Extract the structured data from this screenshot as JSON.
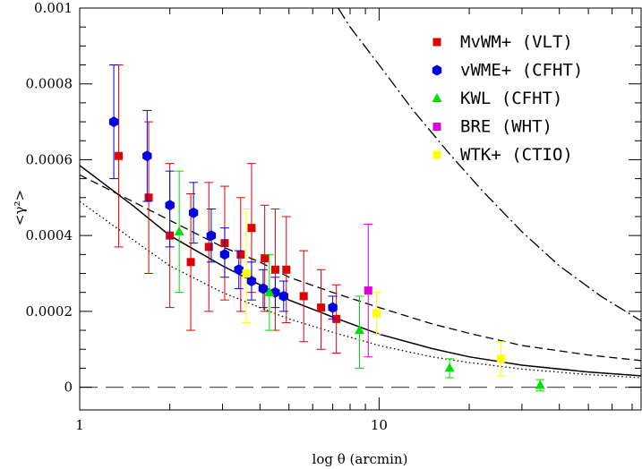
{
  "chart_data": {
    "type": "scatter",
    "xlabel": "log θ (arcmin)",
    "ylabel": "<γ²>",
    "x_scale": "log",
    "xlim": [
      1,
      75
    ],
    "ylim": [
      -6e-05,
      0.001
    ],
    "x_ticks": [
      {
        "value": 1,
        "label": "1"
      },
      {
        "value": 10,
        "label": "10"
      }
    ],
    "y_ticks": [
      {
        "value": 0,
        "label": "0"
      },
      {
        "value": 0.0002,
        "label": "0.0002"
      },
      {
        "value": 0.0004,
        "label": "0.0004"
      },
      {
        "value": 0.0006,
        "label": "0.0006"
      },
      {
        "value": 0.0008,
        "label": "0.0008"
      },
      {
        "value": 0.001,
        "label": "0.001"
      }
    ],
    "legend_position": "top-right",
    "series": [
      {
        "name": "MvWM+ (VLT)",
        "marker": "square",
        "color": "#e00000",
        "points": [
          {
            "x": 1.35,
            "y": 0.00061,
            "lo": 0.00037,
            "hi": 0.00085
          },
          {
            "x": 1.7,
            "y": 0.0005,
            "lo": 0.0003,
            "hi": 0.0007
          },
          {
            "x": 2.0,
            "y": 0.0004,
            "lo": 0.00021,
            "hi": 0.00059
          },
          {
            "x": 2.35,
            "y": 0.00033,
            "lo": 0.00015,
            "hi": 0.00051
          },
          {
            "x": 2.7,
            "y": 0.00037,
            "lo": 0.0002,
            "hi": 0.00054
          },
          {
            "x": 3.05,
            "y": 0.00038,
            "lo": 0.00023,
            "hi": 0.00053
          },
          {
            "x": 3.45,
            "y": 0.00035,
            "lo": 0.0002,
            "hi": 0.0005
          },
          {
            "x": 3.75,
            "y": 0.00042,
            "lo": 0.00025,
            "hi": 0.00059
          },
          {
            "x": 4.15,
            "y": 0.00034,
            "lo": 0.0002,
            "hi": 0.00048
          },
          {
            "x": 4.5,
            "y": 0.00031,
            "lo": 0.00015,
            "hi": 0.00047
          },
          {
            "x": 4.9,
            "y": 0.00031,
            "lo": 0.00017,
            "hi": 0.00045
          },
          {
            "x": 5.6,
            "y": 0.00024,
            "lo": 0.00012,
            "hi": 0.00036
          },
          {
            "x": 6.4,
            "y": 0.00021,
            "lo": 0.0001,
            "hi": 0.00031
          },
          {
            "x": 7.2,
            "y": 0.00018,
            "lo": 9e-05,
            "hi": 0.00027
          }
        ]
      },
      {
        "name": "vWME+ (CFHT)",
        "marker": "hexagon",
        "color": "#0000e0",
        "points": [
          {
            "x": 1.3,
            "y": 0.0007,
            "lo": 0.00055,
            "hi": 0.00085
          },
          {
            "x": 1.68,
            "y": 0.00061,
            "lo": 0.00049,
            "hi": 0.00073
          },
          {
            "x": 2.0,
            "y": 0.00048,
            "lo": 0.00037,
            "hi": 0.00057
          },
          {
            "x": 2.4,
            "y": 0.00046,
            "lo": 0.00038,
            "hi": 0.00054
          },
          {
            "x": 2.75,
            "y": 0.0004,
            "lo": 0.00033,
            "hi": 0.00047
          },
          {
            "x": 3.05,
            "y": 0.00035,
            "lo": 0.00029,
            "hi": 0.00042
          },
          {
            "x": 3.4,
            "y": 0.00031,
            "lo": 0.00026,
            "hi": 0.00036
          },
          {
            "x": 3.75,
            "y": 0.00028,
            "lo": 0.00023,
            "hi": 0.00033
          },
          {
            "x": 4.1,
            "y": 0.00026,
            "lo": 0.00021,
            "hi": 0.00031
          },
          {
            "x": 4.5,
            "y": 0.00025,
            "lo": 0.00021,
            "hi": 0.00029
          },
          {
            "x": 4.8,
            "y": 0.00024,
            "lo": 0.0002,
            "hi": 0.00028
          },
          {
            "x": 7.0,
            "y": 0.00021,
            "lo": 0.00018,
            "hi": 0.00024
          }
        ]
      },
      {
        "name": "KWL (CFHT)",
        "marker": "triangle",
        "color": "#00e000",
        "points": [
          {
            "x": 2.15,
            "y": 0.00041,
            "lo": 0.00025,
            "hi": 0.00057
          },
          {
            "x": 4.3,
            "y": 0.00025,
            "lo": 0.00015,
            "hi": 0.00035
          },
          {
            "x": 8.6,
            "y": 0.00015,
            "lo": 5e-05,
            "hi": 0.00024
          },
          {
            "x": 17.2,
            "y": 5e-05,
            "lo": 2.5e-05,
            "hi": 7.5e-05
          },
          {
            "x": 34.5,
            "y": 5e-06,
            "lo": -1e-05,
            "hi": 2e-05
          }
        ]
      },
      {
        "name": "BRE (WHT)",
        "marker": "square",
        "color": "#e000e0",
        "points": [
          {
            "x": 9.2,
            "y": 0.000255,
            "lo": 8e-05,
            "hi": 0.00043
          }
        ]
      },
      {
        "name": "WTK+ (CTIO)",
        "marker": "square",
        "color": "#ffff00",
        "points": [
          {
            "x": 3.6,
            "y": 0.0003,
            "lo": 0.00017,
            "hi": 0.00047
          },
          {
            "x": 9.8,
            "y": 0.000195,
            "lo": 0.00014,
            "hi": 0.00025
          },
          {
            "x": 25.5,
            "y": 7.5e-05,
            "lo": 3e-05,
            "hi": 0.00012
          }
        ]
      }
    ],
    "model_curves": [
      {
        "style": "solid",
        "points": [
          [
            1,
            0.000585
          ],
          [
            1.5,
            0.00048
          ],
          [
            2,
            0.0004
          ],
          [
            3,
            0.00032
          ],
          [
            4,
            0.00027
          ],
          [
            5,
            0.00023
          ],
          [
            7,
            0.000185
          ],
          [
            10,
            0.00014
          ],
          [
            15,
            0.000102
          ],
          [
            20,
            8e-05
          ],
          [
            30,
            5.8e-05
          ],
          [
            50,
            4e-05
          ],
          [
            75,
            3e-05
          ]
        ]
      },
      {
        "style": "dashed",
        "points": [
          [
            1,
            0.00056
          ],
          [
            1.5,
            0.00049
          ],
          [
            2,
            0.00044
          ],
          [
            3,
            0.00037
          ],
          [
            4,
            0.00033
          ],
          [
            5,
            0.00029
          ],
          [
            7,
            0.00025
          ],
          [
            10,
            0.00021
          ],
          [
            15,
            0.000167
          ],
          [
            20,
            0.000142
          ],
          [
            30,
            0.00011
          ],
          [
            50,
            8.5e-05
          ],
          [
            75,
            7e-05
          ]
        ]
      },
      {
        "style": "dotted",
        "points": [
          [
            1,
            0.00049
          ],
          [
            1.5,
            0.00039
          ],
          [
            2,
            0.00032
          ],
          [
            3,
            0.00025
          ],
          [
            4,
            0.00021
          ],
          [
            5,
            0.00018
          ],
          [
            7,
            0.000145
          ],
          [
            10,
            0.00011
          ],
          [
            15,
            8e-05
          ],
          [
            20,
            6.5e-05
          ],
          [
            30,
            4.8e-05
          ],
          [
            50,
            3.3e-05
          ],
          [
            75,
            2.5e-05
          ]
        ]
      },
      {
        "style": "dash-dot",
        "points": [
          [
            7.3,
            0.001
          ],
          [
            8,
            0.00095
          ],
          [
            10,
            0.00085
          ],
          [
            13,
            0.00073
          ],
          [
            17,
            0.00062
          ],
          [
            22,
            0.00052
          ],
          [
            30,
            0.00041
          ],
          [
            40,
            0.00032
          ],
          [
            55,
            0.00024
          ],
          [
            75,
            0.000175
          ]
        ]
      },
      {
        "style": "long-dash",
        "points": [
          [
            1,
            0
          ],
          [
            75,
            0
          ]
        ]
      }
    ]
  }
}
